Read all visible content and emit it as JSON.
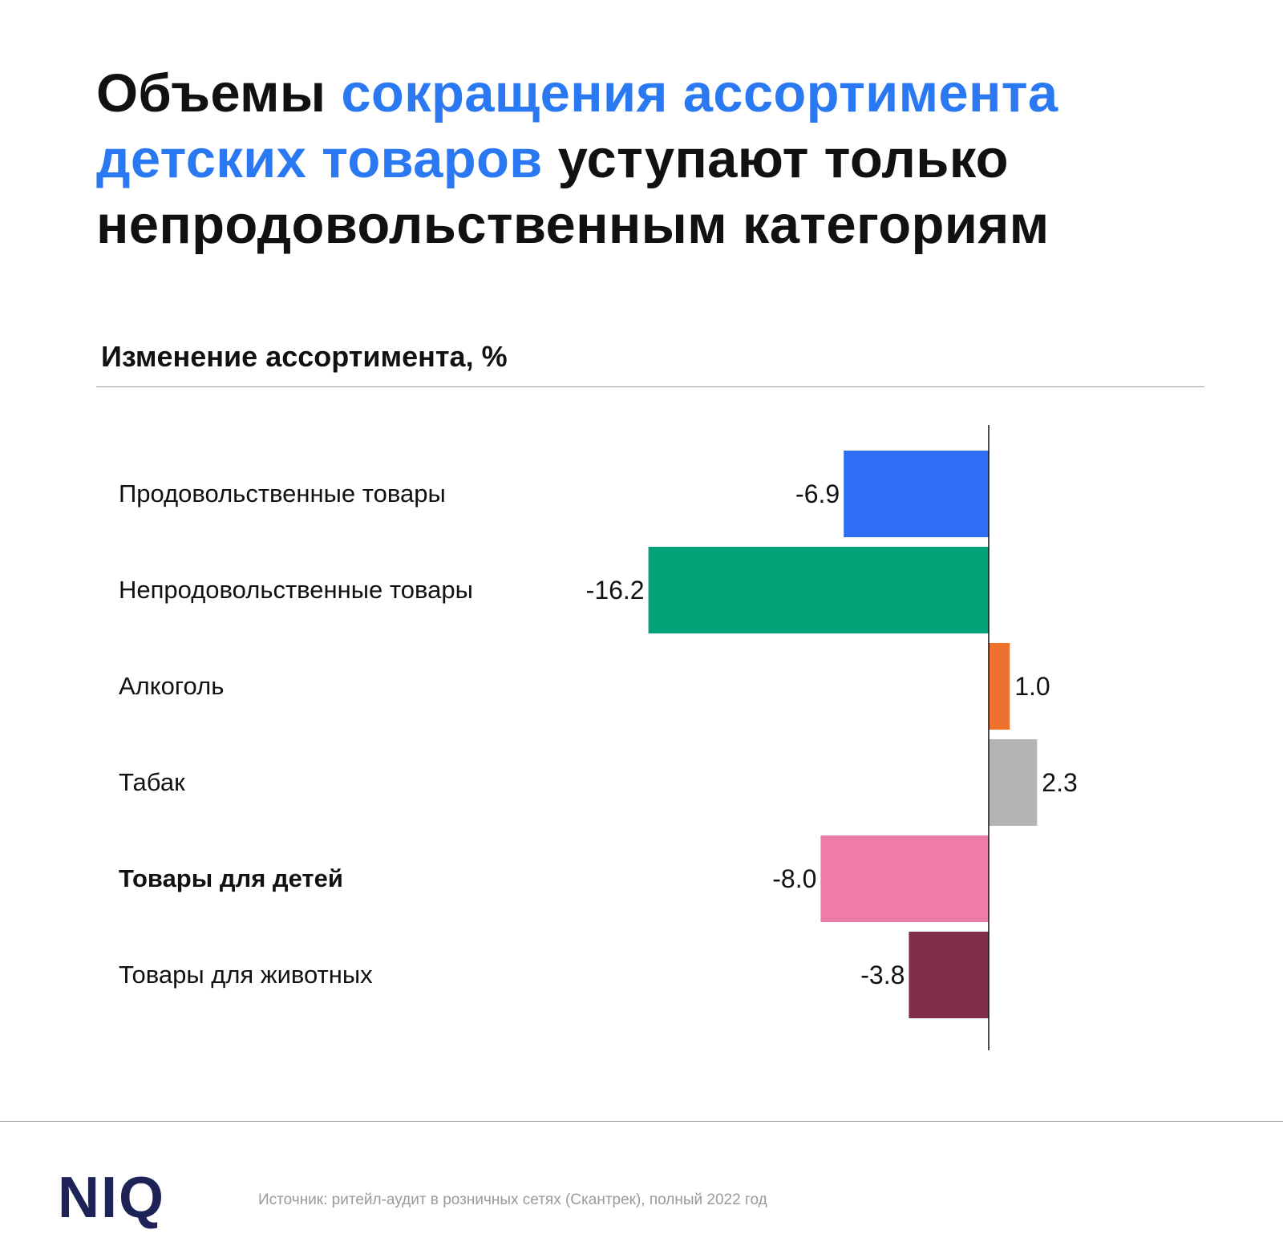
{
  "title": {
    "part1": "Объемы ",
    "highlight": "сокращения ассортимента детских товаров",
    "part2": " уступают только непродовольственным категориям"
  },
  "footer": {
    "logo": "NIQ",
    "source": "Источник: ритейл-аудит в розничных сетях (Скантрек), полный 2022 год"
  },
  "colors": {
    "title_highlight": "#2a79f3",
    "logo": "#1d2357"
  },
  "chart_data": {
    "type": "bar",
    "orientation": "horizontal",
    "title": "Изменение ассортимента, %",
    "categories": [
      "Продовольственные товары",
      "Непродовольственные товары",
      "Алкоголь",
      "Табак",
      "Товары для детей",
      "Товары для животных"
    ],
    "values": [
      -6.9,
      -16.2,
      1.0,
      2.3,
      -8.0,
      -3.8
    ],
    "value_labels": [
      "-6.9",
      "-16.2",
      "1.0",
      "2.3",
      "-8.0",
      "-3.8"
    ],
    "colors": [
      "#2e6ef5",
      "#04a278",
      "#ef7130",
      "#b4b4b4",
      "#ef7ba7",
      "#812c4a"
    ],
    "bold_category": "Товары для детей",
    "grid": false,
    "legend": "none"
  }
}
